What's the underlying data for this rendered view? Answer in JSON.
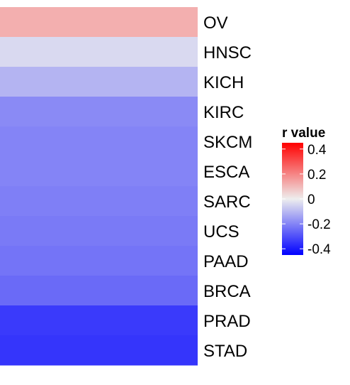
{
  "chart_data": {
    "type": "heatmap",
    "title": "",
    "xlabel": "",
    "ylabel": "",
    "rows": [
      "OV",
      "HNSC",
      "KICH",
      "KIRC",
      "SKCM",
      "ESCA",
      "SARC",
      "UCS",
      "PAAD",
      "BRCA",
      "PRAD",
      "STAD"
    ],
    "values": [
      0.12,
      -0.04,
      -0.11,
      -0.19,
      -0.2,
      -0.2,
      -0.21,
      -0.22,
      -0.23,
      -0.25,
      -0.34,
      -0.35
    ],
    "legend": {
      "title": "r value",
      "ticks": [
        0.4,
        0.2,
        0,
        -0.2,
        -0.4
      ],
      "tick_labels": [
        "0.4",
        "0.2",
        "0",
        "-0.2",
        "-0.4"
      ],
      "range": [
        -0.45,
        0.45
      ],
      "placement": "right"
    },
    "colors": {
      "low": "#0000ff",
      "mid": "#eeeeee",
      "high": "#ff0000"
    }
  }
}
